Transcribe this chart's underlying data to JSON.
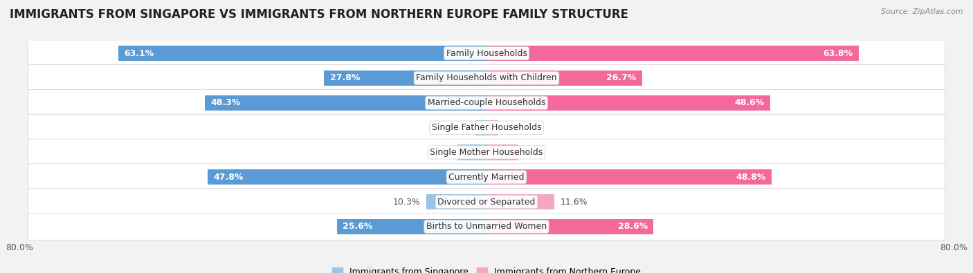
{
  "title": "IMMIGRANTS FROM SINGAPORE VS IMMIGRANTS FROM NORTHERN EUROPE FAMILY STRUCTURE",
  "source": "Source: ZipAtlas.com",
  "categories": [
    "Family Households",
    "Family Households with Children",
    "Married-couple Households",
    "Single Father Households",
    "Single Mother Households",
    "Currently Married",
    "Divorced or Separated",
    "Births to Unmarried Women"
  ],
  "singapore_values": [
    63.1,
    27.8,
    48.3,
    1.9,
    5.0,
    47.8,
    10.3,
    25.6
  ],
  "northern_europe_values": [
    63.8,
    26.7,
    48.6,
    2.0,
    5.3,
    48.8,
    11.6,
    28.6
  ],
  "singapore_color_strong": "#5b9bd5",
  "singapore_color_light": "#9dc3e6",
  "northern_europe_color_strong": "#f4699b",
  "northern_europe_color_light": "#f4a7c3",
  "max_value": 80.0,
  "background_color": "#f2f2f2",
  "row_bg_color": "#ffffff",
  "row_border_color": "#d0d0d0",
  "title_fontsize": 12,
  "axis_fontsize": 9,
  "value_fontsize": 9,
  "cat_fontsize": 9,
  "legend_fontsize": 9,
  "source_fontsize": 8,
  "threshold_for_inside_label": 15.0
}
